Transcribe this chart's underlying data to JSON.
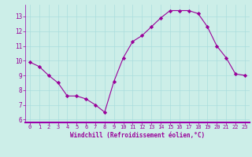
{
  "x": [
    0,
    1,
    2,
    3,
    4,
    5,
    6,
    7,
    8,
    9,
    10,
    11,
    12,
    13,
    14,
    15,
    16,
    17,
    18,
    19,
    20,
    21,
    22,
    23
  ],
  "y": [
    9.9,
    9.6,
    9.0,
    8.5,
    7.6,
    7.6,
    7.4,
    7.0,
    6.5,
    8.6,
    10.2,
    11.3,
    11.7,
    12.3,
    12.9,
    13.4,
    13.4,
    13.4,
    13.2,
    12.3,
    11.0,
    10.2,
    9.1,
    9.0
  ],
  "line_color": "#990099",
  "marker": "D",
  "marker_size": 2.2,
  "bg_color": "#cceee8",
  "grid_color": "#aadddd",
  "xlabel": "Windchill (Refroidissement éolien,°C)",
  "xlabel_color": "#990099",
  "tick_color": "#990099",
  "xlim": [
    -0.5,
    23.5
  ],
  "ylim": [
    5.8,
    13.8
  ],
  "yticks": [
    6,
    7,
    8,
    9,
    10,
    11,
    12,
    13
  ],
  "xticks": [
    0,
    1,
    2,
    3,
    4,
    5,
    6,
    7,
    8,
    9,
    10,
    11,
    12,
    13,
    14,
    15,
    16,
    17,
    18,
    19,
    20,
    21,
    22,
    23
  ],
  "spine_color": "#9900aa",
  "axis_line_color": "#9900aa"
}
